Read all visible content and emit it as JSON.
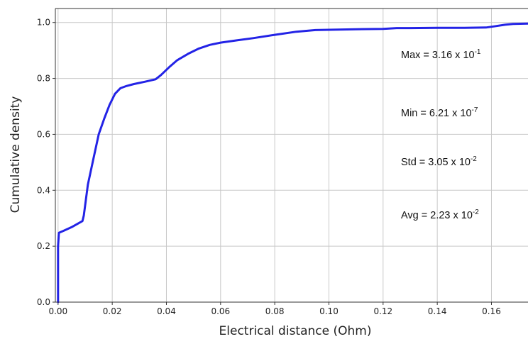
{
  "chart_data": {
    "type": "line",
    "title": "",
    "xlabel": "Electrical distance (Ohm)",
    "ylabel": "Cumulative density",
    "xlim": [
      -0.001,
      0.1735
    ],
    "ylim": [
      0.0,
      1.05
    ],
    "x_ticks": [
      {
        "value": 0.0,
        "label": "0.00"
      },
      {
        "value": 0.02,
        "label": "0.02"
      },
      {
        "value": 0.04,
        "label": "0.04"
      },
      {
        "value": 0.06,
        "label": "0.06"
      },
      {
        "value": 0.08,
        "label": "0.08"
      },
      {
        "value": 0.1,
        "label": "0.10"
      },
      {
        "value": 0.12,
        "label": "0.12"
      },
      {
        "value": 0.14,
        "label": "0.14"
      },
      {
        "value": 0.16,
        "label": "0.16"
      }
    ],
    "y_ticks": [
      {
        "value": 0.0,
        "label": "0.0"
      },
      {
        "value": 0.2,
        "label": "0.2"
      },
      {
        "value": 0.4,
        "label": "0.4"
      },
      {
        "value": 0.6,
        "label": "0.6"
      },
      {
        "value": 0.8,
        "label": "0.8"
      },
      {
        "value": 1.0,
        "label": "1.0"
      }
    ],
    "grid": true,
    "series": [
      {
        "color": "#2323e6",
        "x": [
          0.0,
          0.0,
          0.0003,
          0.002,
          0.005,
          0.009,
          0.0095,
          0.011,
          0.013,
          0.015,
          0.017,
          0.019,
          0.021,
          0.023,
          0.025,
          0.028,
          0.032,
          0.036,
          0.038,
          0.041,
          0.044,
          0.048,
          0.052,
          0.056,
          0.06,
          0.066,
          0.072,
          0.08,
          0.088,
          0.095,
          0.1,
          0.11,
          0.12,
          0.125,
          0.13,
          0.14,
          0.15,
          0.158,
          0.161,
          0.165,
          0.168,
          0.1735
        ],
        "y": [
          0.0,
          0.2,
          0.248,
          0.255,
          0.268,
          0.29,
          0.31,
          0.42,
          0.51,
          0.6,
          0.655,
          0.705,
          0.745,
          0.765,
          0.772,
          0.78,
          0.788,
          0.797,
          0.812,
          0.84,
          0.865,
          0.888,
          0.907,
          0.92,
          0.928,
          0.936,
          0.944,
          0.956,
          0.967,
          0.973,
          0.974,
          0.976,
          0.977,
          0.98,
          0.98,
          0.981,
          0.981,
          0.982,
          0.986,
          0.992,
          0.995,
          0.996
        ]
      }
    ],
    "annotations": {
      "max": {
        "base": "Max = 3.16 x 10",
        "exp": "-1"
      },
      "min": {
        "base": "Min = 6.21 x 10",
        "exp": "-7"
      },
      "std": {
        "base": "Std = 3.05 x 10",
        "exp": "-2"
      },
      "avg": {
        "base": "Avg = 2.23 x 10",
        "exp": "-2"
      }
    },
    "colors": {
      "line": "#2323e6",
      "grid": "#c8c8c8",
      "axis": "#333333"
    }
  }
}
